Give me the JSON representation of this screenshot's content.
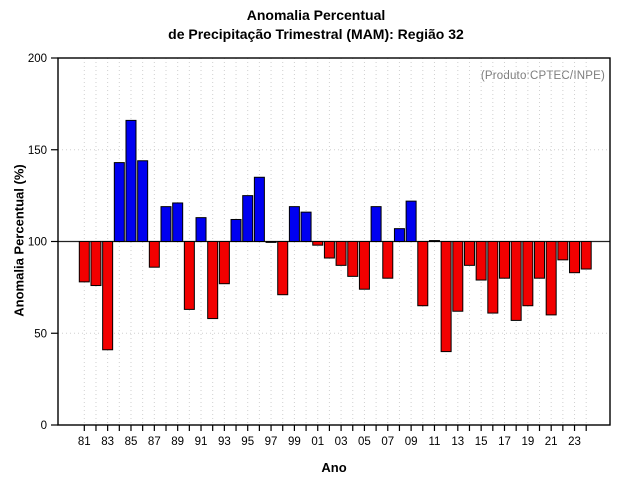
{
  "title": {
    "line1": "Anomalia Percentual",
    "line2": "de Precipitação Trimestral (MAM): Região 32"
  },
  "annotation": "(Produto:CPTEC/INPE)",
  "chart_data": {
    "type": "bar",
    "title": "Anomalia Percentual de Precipitação Trimestral (MAM): Região 32",
    "xlabel": "Ano",
    "ylabel": "Anomalia Percentual (%)",
    "ylim": [
      0,
      200
    ],
    "baseline": 100,
    "grid": true,
    "y_ticks": [
      0,
      50,
      100,
      150,
      200
    ],
    "y_gridlines": [
      50,
      150
    ],
    "x": [
      1981,
      1982,
      1983,
      1984,
      1985,
      1986,
      1987,
      1988,
      1989,
      1990,
      1991,
      1992,
      1993,
      1994,
      1995,
      1996,
      1997,
      1998,
      1999,
      2000,
      2001,
      2002,
      2003,
      2004,
      2005,
      2006,
      2007,
      2008,
      2009,
      2010,
      2011,
      2012,
      2013,
      2014,
      2015,
      2016,
      2017,
      2018,
      2019,
      2020,
      2021,
      2022,
      2023,
      2024
    ],
    "values": [
      78,
      76,
      41,
      143,
      166,
      144,
      86,
      119,
      121,
      63,
      113,
      58,
      77,
      112,
      125,
      135,
      100,
      71,
      119,
      116,
      98,
      91,
      87,
      81,
      74,
      119,
      80,
      107,
      122,
      65,
      100.5,
      40,
      62,
      87,
      79,
      61,
      80,
      57,
      65,
      80,
      60,
      90,
      83,
      85
    ],
    "x_tick_labels": [
      "81",
      "83",
      "85",
      "87",
      "89",
      "91",
      "93",
      "95",
      "97",
      "99",
      "01",
      "03",
      "05",
      "07",
      "09",
      "11",
      "13",
      "15",
      "17",
      "19",
      "21",
      "23"
    ],
    "colors": {
      "above_baseline": "#0000f0",
      "below_baseline": "#f20000",
      "bar_outline": "#000000",
      "gridline": "#d0d0d0",
      "baseline_line": "#222222",
      "frame": "#000000",
      "tick_label": "#000000",
      "annotation": "#7d7d7d"
    }
  }
}
